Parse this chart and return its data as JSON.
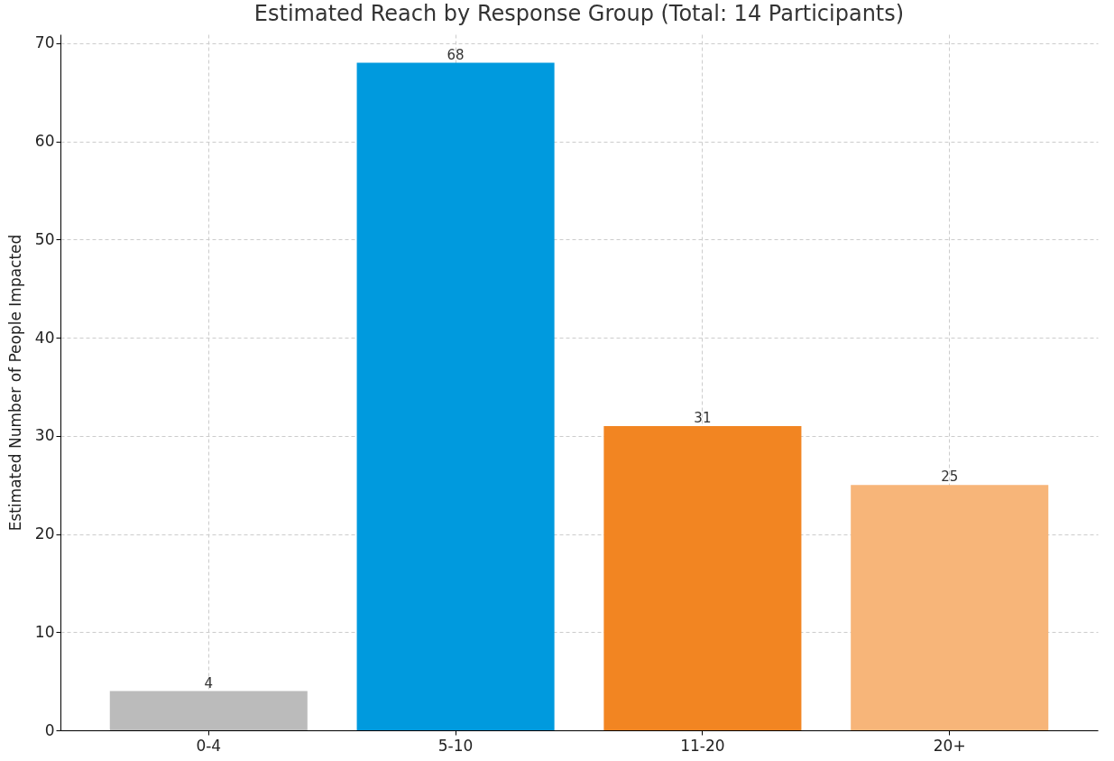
{
  "chart_data": {
    "type": "bar",
    "title": "Estimated Reach by Response Group (Total: 14 Participants)",
    "ylabel": "Estimated Number of People Impacted",
    "categories": [
      "0-4",
      "5-10",
      "11-20",
      "20+"
    ],
    "values": [
      4,
      68,
      31,
      25
    ],
    "colors": [
      "#bbbbbb",
      "#009ade",
      "#f28522",
      "#f7b579"
    ],
    "ylim": [
      0,
      70.9
    ],
    "yticks": [
      0,
      10,
      20,
      30,
      40,
      50,
      60,
      70
    ],
    "grid": true,
    "data_labels": true
  }
}
